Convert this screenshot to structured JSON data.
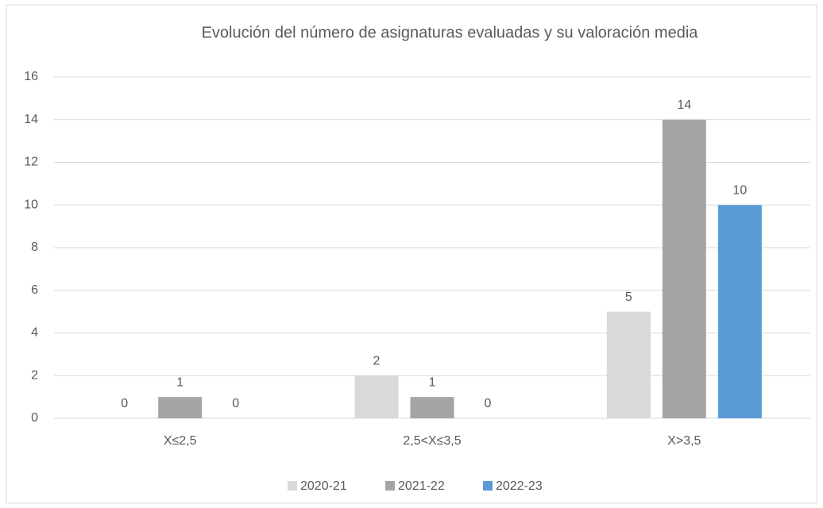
{
  "chart_data": {
    "type": "bar",
    "title": "Evolución del número de asignaturas evaluadas y su valoración media",
    "categories": [
      "X≤2,5",
      "2,5<X≤3,5",
      "X>3,5"
    ],
    "series": [
      {
        "name": "2020-21",
        "color": "#d9d9d9",
        "values": [
          0,
          2,
          5
        ]
      },
      {
        "name": "2021-22",
        "color": "#a5a5a5",
        "values": [
          1,
          1,
          14
        ]
      },
      {
        "name": "2022-23",
        "color": "#5b9bd5",
        "values": [
          0,
          0,
          10
        ]
      }
    ],
    "ylim": [
      0,
      16
    ],
    "yticks": [
      0,
      2,
      4,
      6,
      8,
      10,
      12,
      14,
      16
    ],
    "grid": true,
    "legend": "bottom"
  }
}
